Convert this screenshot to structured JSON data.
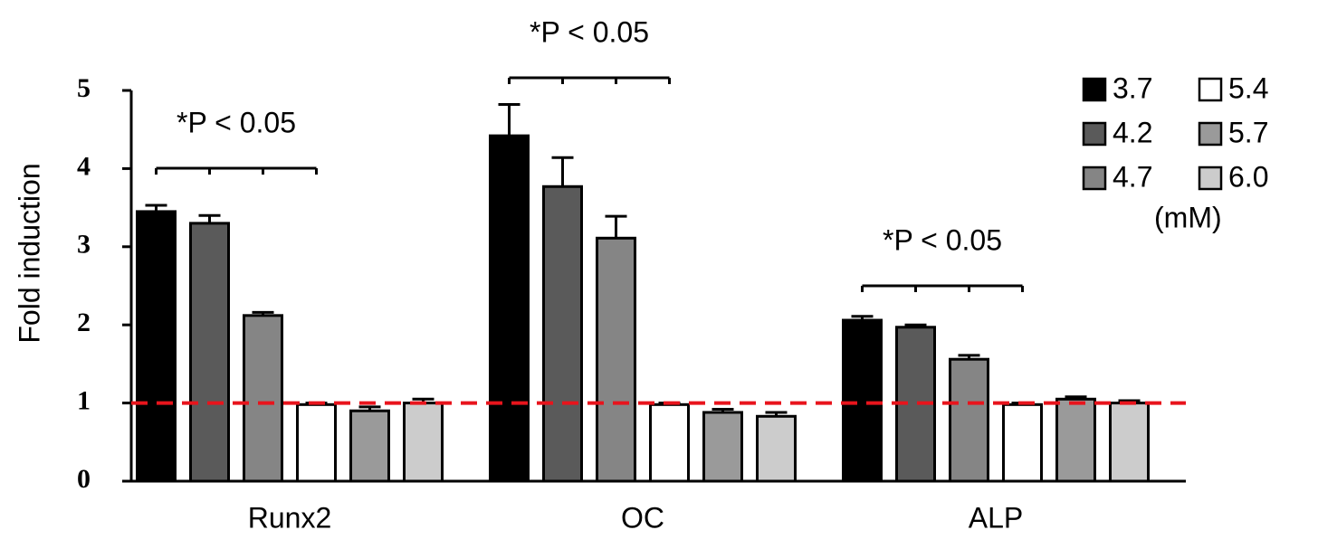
{
  "chart_data": {
    "type": "bar",
    "y_label": "Fold induction",
    "categories": [
      "Runx2",
      "OC",
      "ALP"
    ],
    "ylim": [
      0,
      5
    ],
    "yticks": [
      0,
      1,
      2,
      3,
      4,
      5
    ],
    "legend_title": "(mM)",
    "legend_position": "upper right",
    "reference_line": {
      "value": 1,
      "color": "#e8141c"
    },
    "annotations": [
      "*P < 0.05",
      "*P < 0.05",
      "*P < 0.05"
    ],
    "series": [
      {
        "name": "3.7",
        "color": "#000000",
        "values": [
          3.45,
          4.42,
          2.06
        ],
        "errors": [
          0.08,
          0.4,
          0.05
        ]
      },
      {
        "name": "4.2",
        "color": "#5a5a5a",
        "values": [
          3.3,
          3.77,
          1.97
        ],
        "errors": [
          0.1,
          0.37,
          0.03
        ]
      },
      {
        "name": "4.7",
        "color": "#858585",
        "values": [
          2.12,
          3.11,
          1.56
        ],
        "errors": [
          0.04,
          0.28,
          0.05
        ]
      },
      {
        "name": "5.4",
        "color": "#ffffff",
        "values": [
          0.98,
          0.98,
          0.98
        ],
        "errors": [
          0.02,
          0.02,
          0.02
        ]
      },
      {
        "name": "5.7",
        "color": "#9a9a9a",
        "values": [
          0.9,
          0.88,
          1.05
        ],
        "errors": [
          0.05,
          0.04,
          0.03
        ]
      },
      {
        "name": "6.0",
        "color": "#cccccc",
        "values": [
          1.0,
          0.83,
          1.0
        ],
        "errors": [
          0.05,
          0.05,
          0.03
        ]
      }
    ]
  }
}
